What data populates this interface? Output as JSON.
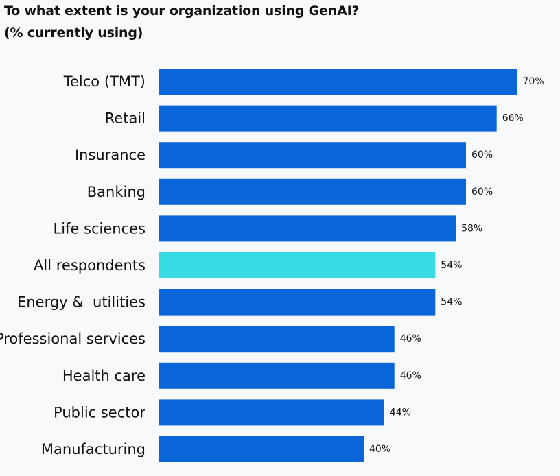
{
  "chart_data": {
    "type": "bar",
    "orientation": "horizontal",
    "title": "To what extent is your organization using GenAI?",
    "subtitle": "(% currently using)",
    "categories": [
      "Telco (TMT)",
      "Retail",
      "Insurance",
      "Banking",
      "Life sciences",
      "All respondents",
      "Energy &  utilities",
      "Professional services",
      "Health care",
      "Public sector",
      "Manufacturing"
    ],
    "values": [
      70,
      66,
      60,
      60,
      58,
      54,
      54,
      46,
      46,
      44,
      40
    ],
    "value_labels": [
      "70%",
      "66%",
      "60%",
      "60%",
      "58%",
      "54%",
      "54%",
      "46%",
      "46%",
      "44%",
      "40%"
    ],
    "unit": "%",
    "highlight_category": "All respondents",
    "colors": {
      "bar": "#0a66d8",
      "highlight": "#38dae3",
      "axis": "#b5b5b5"
    },
    "grid": false,
    "legend": "none"
  }
}
